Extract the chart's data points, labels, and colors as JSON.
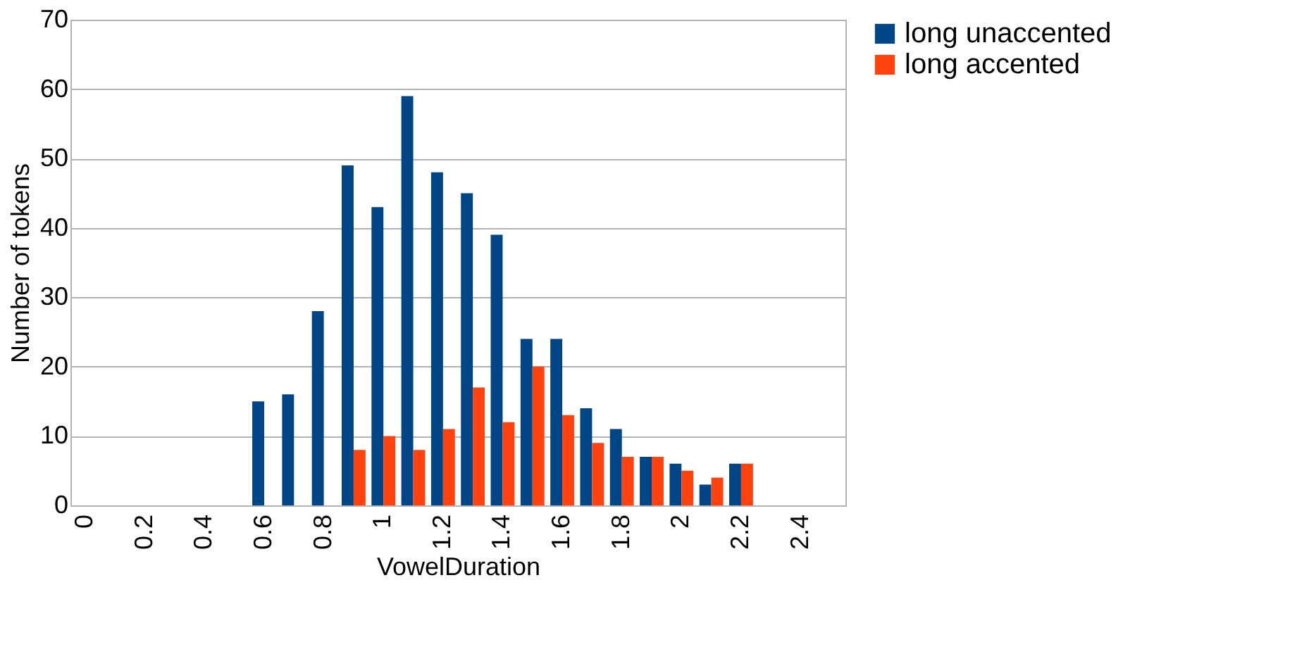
{
  "chart_data": {
    "type": "bar",
    "xlabel": "VowelDuration",
    "ylabel": "Number of tokens",
    "categories": [
      "0",
      null,
      "0.2",
      null,
      "0.4",
      null,
      "0.6",
      null,
      "0.8",
      null,
      "1",
      null,
      "1.2",
      null,
      "1.4",
      null,
      "1.6",
      null,
      "1.8",
      null,
      "2",
      null,
      "2.2",
      null,
      "2.4",
      null
    ],
    "series": [
      {
        "name": "long unaccented",
        "color": "#004586",
        "values": [
          null,
          null,
          null,
          null,
          null,
          null,
          15,
          16,
          28,
          49,
          43,
          59,
          48,
          45,
          39,
          24,
          24,
          14,
          11,
          7,
          6,
          3,
          6,
          null,
          null,
          null
        ]
      },
      {
        "name": "long accented",
        "color": "#ff420e",
        "values": [
          null,
          null,
          null,
          null,
          null,
          null,
          null,
          null,
          null,
          8,
          10,
          8,
          11,
          17,
          12,
          20,
          13,
          9,
          7,
          7,
          5,
          4,
          6,
          null,
          null,
          null
        ]
      }
    ],
    "ylim": [
      0,
      70
    ],
    "yticks": [
      0,
      10,
      20,
      30,
      40,
      50,
      60,
      70
    ],
    "grid": "y",
    "legend": "right"
  }
}
